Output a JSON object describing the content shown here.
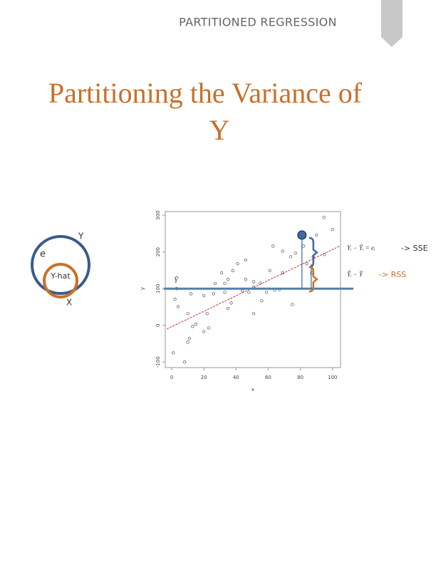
{
  "header": {
    "title": "PARTITIONED REGRESSION"
  },
  "slide_title": {
    "line1": "Partitioning the Variance of",
    "line2": "Y"
  },
  "venn": {
    "outer": "Y",
    "residual": "e",
    "inner": "Y-hat",
    "source": "X"
  },
  "chart_data": {
    "type": "scatter",
    "x_label": "x",
    "y_label": "y",
    "xlim": [
      -4,
      105
    ],
    "ylim": [
      -115,
      310
    ],
    "xticks": [
      0,
      20,
      40,
      60,
      80,
      100
    ],
    "yticks": [
      -100,
      0,
      100,
      200,
      300
    ],
    "x": [
      94.7,
      100,
      90,
      82,
      63,
      69,
      77,
      74,
      88,
      95,
      41,
      46,
      61,
      69,
      38,
      31,
      35,
      46,
      27,
      33,
      51,
      55,
      51,
      59,
      64,
      67,
      44,
      48,
      33,
      26,
      20,
      12,
      3,
      2,
      4,
      10,
      22,
      37,
      35,
      51,
      56,
      75,
      15,
      20,
      11,
      10,
      1,
      8,
      13,
      23,
      87,
      84
    ],
    "values": [
      294,
      261,
      246,
      216,
      216,
      202,
      197,
      187,
      187,
      193,
      168,
      178,
      149,
      143,
      149,
      143,
      125,
      125,
      114,
      114,
      119,
      115,
      104,
      90,
      96,
      98,
      94,
      90,
      90,
      86,
      81,
      86,
      100,
      71,
      51,
      32,
      32,
      61,
      46,
      32,
      67,
      57,
      3,
      -17,
      -36,
      -46,
      -75,
      -100,
      -3,
      -7,
      143,
      168
    ],
    "point_color": "#555555",
    "highlight": {
      "x": 81,
      "y": 246,
      "color": "#3d6aa3"
    },
    "fit_line": {
      "x": [
        -3,
        105
      ],
      "y": [
        -10,
        217
      ],
      "color": "#d03030"
    },
    "mean_line": {
      "y": 100,
      "color": "#4f7fb0",
      "label": "Ȳ"
    },
    "annotations": {
      "sse_formula": "Yᵢ − Ŷᵢ = eᵢ",
      "sse": "-> SSE",
      "rss_formula": "Ŷᵢ − Ȳ",
      "rss": "-> RSS"
    }
  }
}
